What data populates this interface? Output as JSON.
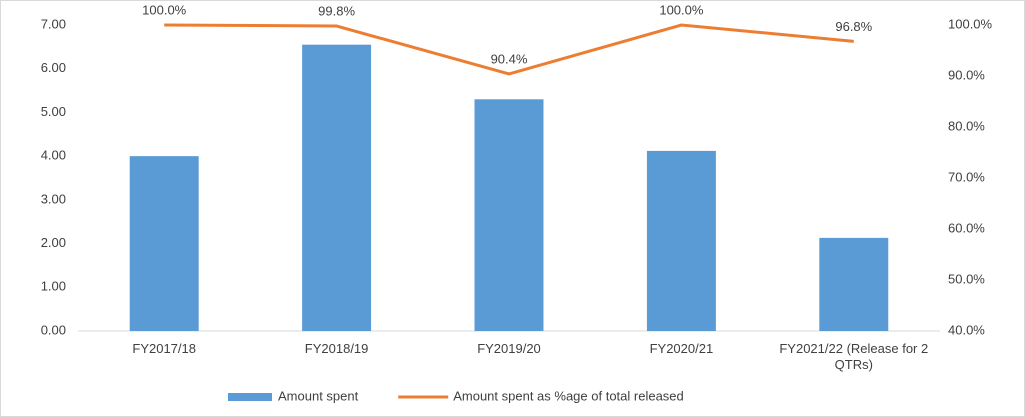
{
  "chart_data": {
    "type": "bar_line",
    "categories": [
      "FY2017/18",
      "FY2018/19",
      "FY2019/20",
      "FY2020/21",
      "FY2021/22 (Release for 2 QTRs)"
    ],
    "series": [
      {
        "name": "Amount spent",
        "color": "#5b9bd5",
        "type": "bar",
        "values": [
          4.0,
          6.55,
          5.3,
          4.12,
          2.13
        ]
      },
      {
        "name": "Amount spent as %age of total released",
        "color": "#ed7d31",
        "type": "line",
        "axis": "y2",
        "values": [
          100.0,
          99.8,
          90.4,
          100.0,
          96.8
        ],
        "value_labels": [
          "100.0%",
          "99.8%",
          "90.4%",
          "100.0%",
          "96.8%"
        ]
      }
    ],
    "ylim": [
      0,
      7
    ],
    "yticks": [
      {
        "value": 0,
        "label": "0.00"
      },
      {
        "value": 1,
        "label": "1.00"
      },
      {
        "value": 2,
        "label": "2.00"
      },
      {
        "value": 3,
        "label": "3.00"
      },
      {
        "value": 4,
        "label": "4.00"
      },
      {
        "value": 5,
        "label": "5.00"
      },
      {
        "value": 6,
        "label": "6.00"
      },
      {
        "value": 7,
        "label": "7.00"
      }
    ],
    "y2lim": [
      40,
      100
    ],
    "y2ticks": [
      {
        "value": 40,
        "label": "40.0%"
      },
      {
        "value": 50,
        "label": "50.0%"
      },
      {
        "value": 60,
        "label": "60.0%"
      },
      {
        "value": 70,
        "label": "70.0%"
      },
      {
        "value": 80,
        "label": "80.0%"
      },
      {
        "value": 90,
        "label": "90.0%"
      },
      {
        "value": 100,
        "label": "100.0%"
      }
    ],
    "legend": "bottom"
  }
}
